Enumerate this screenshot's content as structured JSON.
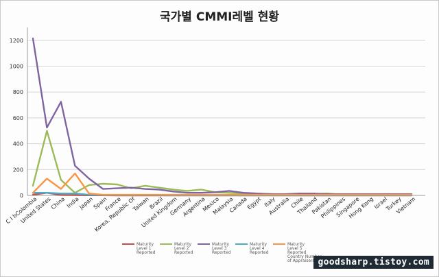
{
  "chart_data": {
    "type": "line",
    "title": "국가별 CMMI레벨 현황",
    "xlabel": "",
    "ylabel": "",
    "ylim": [
      0,
      1300
    ],
    "yticks": [
      0,
      200,
      400,
      600,
      800,
      1000,
      1200
    ],
    "grid": true,
    "legend_position": "bottom",
    "categories": [
      "C I bColombia",
      "United States",
      "China",
      "India",
      "Japan",
      "Spain",
      "France",
      "Korea, Republic Of",
      "Taiwan",
      "Brazil",
      "United Kingdom",
      "Germany",
      "Argentina",
      "Mexico",
      "Malaysia",
      "Canada",
      "Egypt",
      "Italy",
      "Australia",
      "Chile",
      "Thailand",
      "Pakistan",
      "Philippines",
      "Singapore",
      "Hong Kong",
      "Israel",
      "Turkey",
      "Vietnam"
    ],
    "series": [
      {
        "name": "Maturity Level 1 Reported",
        "color": "#c0504d",
        "values": [
          5,
          20,
          3,
          2,
          1,
          1,
          0,
          0,
          0,
          0,
          0,
          0,
          0,
          0,
          0,
          0,
          0,
          0,
          0,
          0,
          0,
          0,
          0,
          0,
          0,
          0,
          0,
          0
        ]
      },
      {
        "name": "Maturity Level 2 Reported",
        "color": "#9bbb59",
        "values": [
          75,
          500,
          120,
          20,
          80,
          90,
          85,
          55,
          75,
          60,
          45,
          35,
          45,
          25,
          20,
          15,
          10,
          10,
          5,
          10,
          10,
          15,
          5,
          5,
          5,
          5,
          5,
          5
        ]
      },
      {
        "name": "Maturity Level 3 Reported",
        "color": "#8064a2",
        "values": [
          1215,
          525,
          725,
          230,
          130,
          50,
          55,
          60,
          50,
          45,
          30,
          20,
          20,
          25,
          35,
          20,
          15,
          10,
          10,
          15,
          15,
          10,
          10,
          10,
          10,
          10,
          10,
          10
        ]
      },
      {
        "name": "Maturity Level 4 Reported",
        "color": "#4bacc6",
        "values": [
          20,
          20,
          15,
          15,
          5,
          3,
          2,
          2,
          2,
          2,
          1,
          1,
          1,
          1,
          1,
          1,
          1,
          1,
          1,
          1,
          1,
          1,
          1,
          1,
          1,
          1,
          1,
          1
        ]
      },
      {
        "name": "Maturity Level 5 Reported Country Number of Appraisers",
        "color": "#f79646",
        "values": [
          20,
          130,
          50,
          170,
          15,
          5,
          5,
          5,
          5,
          5,
          5,
          5,
          5,
          5,
          5,
          5,
          5,
          5,
          5,
          5,
          5,
          5,
          5,
          5,
          5,
          5,
          5,
          5
        ]
      }
    ],
    "legend_labels": [
      [
        "Maturity",
        "Level 1",
        "Reported"
      ],
      [
        "Maturity",
        "Level 2",
        "Reported"
      ],
      [
        "Maturity",
        "Level 3",
        "Reported"
      ],
      [
        "Maturity",
        "Level 4",
        "Reported"
      ],
      [
        "Maturity",
        "Level 5",
        "Reported",
        "Country Number",
        "of Appraisers"
      ]
    ]
  },
  "watermark": "goodsharp.tistoy.com",
  "colors": {
    "grid": "#d4d4d4",
    "axis": "#9a9a9a"
  }
}
